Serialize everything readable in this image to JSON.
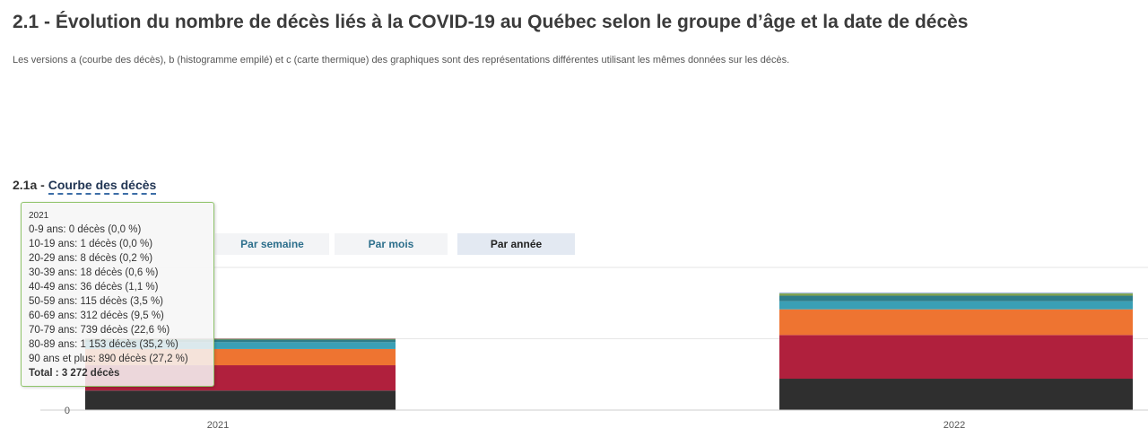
{
  "header": {
    "title": "2.1 - Évolution du nombre de décès liés à la COVID-19 au Québec selon le groupe d’âge et la date de décès",
    "subtitle": "Les versions a (courbe des décès), b (histogramme empilé) et c (carte thermique) des graphiques sont des représentations différentes utilisant les mêmes données sur les décès."
  },
  "section": {
    "prefix": "2.1a - ",
    "link_label": "Courbe des décès"
  },
  "buttons": {
    "week": "Par semaine",
    "month": "Par mois",
    "year": "Par année",
    "active": "year"
  },
  "tooltip": {
    "header": "2021",
    "rows": [
      "0-9 ans: 0 décès (0,0 %)",
      "10-19 ans: 1 décès (0,0 %)",
      "20-29 ans: 8 décès (0,2 %)",
      "30-39 ans: 18 décès (0,6 %)",
      "40-49 ans: 36 décès (1,1 %)",
      "50-59 ans: 115 décès (3,5 %)",
      "60-69 ans: 312 décès (9,5 %)",
      "70-79 ans: 739 décès (22,6 %)",
      "80-89 ans: 1 153 décès (35,2 %)",
      "90 ans et plus: 890 décès (27,2 %)"
    ],
    "total": "Total : 3 272 décès"
  },
  "chart_data": {
    "type": "bar",
    "stacked": true,
    "categories": [
      "2021",
      "2022"
    ],
    "ylim": [
      0,
      6500
    ],
    "ytick_labels": [
      "0"
    ],
    "grid": true,
    "series": [
      {
        "name": "0-9 ans",
        "color": "#6fa8dc",
        "values": [
          0,
          3
        ]
      },
      {
        "name": "10-19 ans",
        "color": "#c27ba0",
        "values": [
          1,
          3
        ]
      },
      {
        "name": "20-29 ans",
        "color": "#8e7cc3",
        "values": [
          8,
          12
        ]
      },
      {
        "name": "30-39 ans",
        "color": "#a6d96a",
        "values": [
          18,
          30
        ]
      },
      {
        "name": "40-49 ans",
        "color": "#7a9a4a",
        "values": [
          36,
          85
        ]
      },
      {
        "name": "50-59 ans",
        "color": "#2e7d8a",
        "values": [
          115,
          250
        ]
      },
      {
        "name": "60-69 ans",
        "color": "#3a9fb5",
        "values": [
          312,
          370
        ]
      },
      {
        "name": "70-79 ans",
        "color": "#ee7431",
        "values": [
          739,
          1170
        ]
      },
      {
        "name": "80-89 ans",
        "color": "#b0203d",
        "values": [
          1153,
          1990
        ]
      },
      {
        "name": "90 ans et plus",
        "color": "#2f2f2f",
        "values": [
          890,
          1430
        ]
      }
    ]
  }
}
